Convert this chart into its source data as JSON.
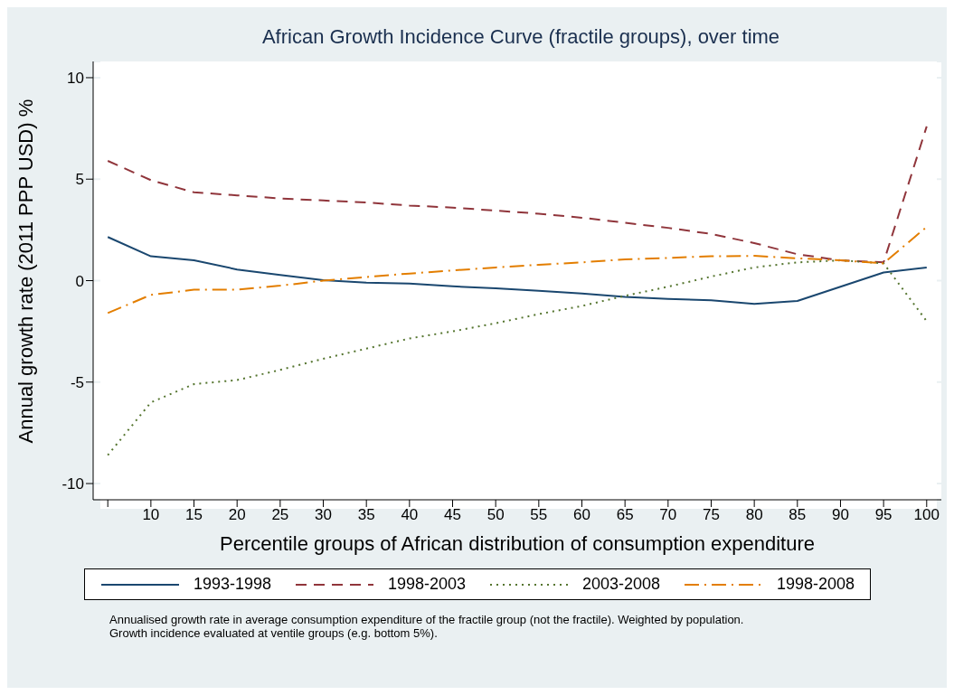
{
  "chart_data": {
    "type": "line",
    "title": "African Growth Incidence Curve (fractile groups), over time",
    "xlabel": "Percentile groups of African distribution of consumption expenditure",
    "ylabel": "Annual growth rate (2011 PPP USD) %",
    "x": [
      5,
      10,
      15,
      20,
      25,
      30,
      35,
      40,
      45,
      50,
      55,
      60,
      65,
      70,
      75,
      80,
      85,
      90,
      95,
      100
    ],
    "series": [
      {
        "name": "1993-1998",
        "color": "#1a476f",
        "line_style": "solid",
        "values": [
          2.15,
          1.2,
          1.0,
          0.55,
          0.28,
          0.02,
          -0.1,
          -0.15,
          -0.28,
          -0.38,
          -0.5,
          -0.63,
          -0.8,
          -0.9,
          -0.97,
          -1.15,
          -1.0,
          -0.3,
          0.4,
          0.65
        ]
      },
      {
        "name": "1998-2003",
        "color": "#90353b",
        "line_style": "dashed",
        "values": [
          5.9,
          4.95,
          4.35,
          4.2,
          4.05,
          3.95,
          3.85,
          3.7,
          3.6,
          3.45,
          3.3,
          3.1,
          2.85,
          2.6,
          2.3,
          1.85,
          1.3,
          1.0,
          0.9,
          7.6
        ]
      },
      {
        "name": "2003-2008",
        "color": "#55752f",
        "line_style": "dotted",
        "values": [
          -8.6,
          -6.0,
          -5.1,
          -4.9,
          -4.4,
          -3.85,
          -3.35,
          -2.85,
          -2.5,
          -2.1,
          -1.65,
          -1.25,
          -0.75,
          -0.3,
          0.2,
          0.65,
          0.9,
          1.0,
          0.85,
          -2.0
        ]
      },
      {
        "name": "1998-2008",
        "color": "#e37e00",
        "line_style": "dashdot",
        "values": [
          -1.6,
          -0.7,
          -0.45,
          -0.45,
          -0.25,
          0.0,
          0.18,
          0.35,
          0.5,
          0.65,
          0.78,
          0.9,
          1.05,
          1.12,
          1.2,
          1.22,
          1.1,
          1.0,
          0.85,
          2.65
        ]
      }
    ],
    "xlim": [
      3.3,
      101.7
    ],
    "xticks": [
      {
        "value": 5,
        "label": null
      },
      10,
      15,
      20,
      25,
      30,
      35,
      40,
      45,
      50,
      55,
      60,
      65,
      70,
      75,
      80,
      85,
      90,
      95,
      100
    ],
    "ylim": [
      -10.8,
      10.8
    ],
    "yticks": [
      -10,
      -5,
      0,
      5,
      10
    ],
    "grid": "y",
    "legend": "bottom",
    "marker": "none",
    "annotations": [
      "Annualised growth rate in average consumption expenditure of the fractile group (not the fractile). Weighted by population.",
      "Growth incidence evaluated at ventile groups (e.g. bottom 5%)."
    ]
  }
}
